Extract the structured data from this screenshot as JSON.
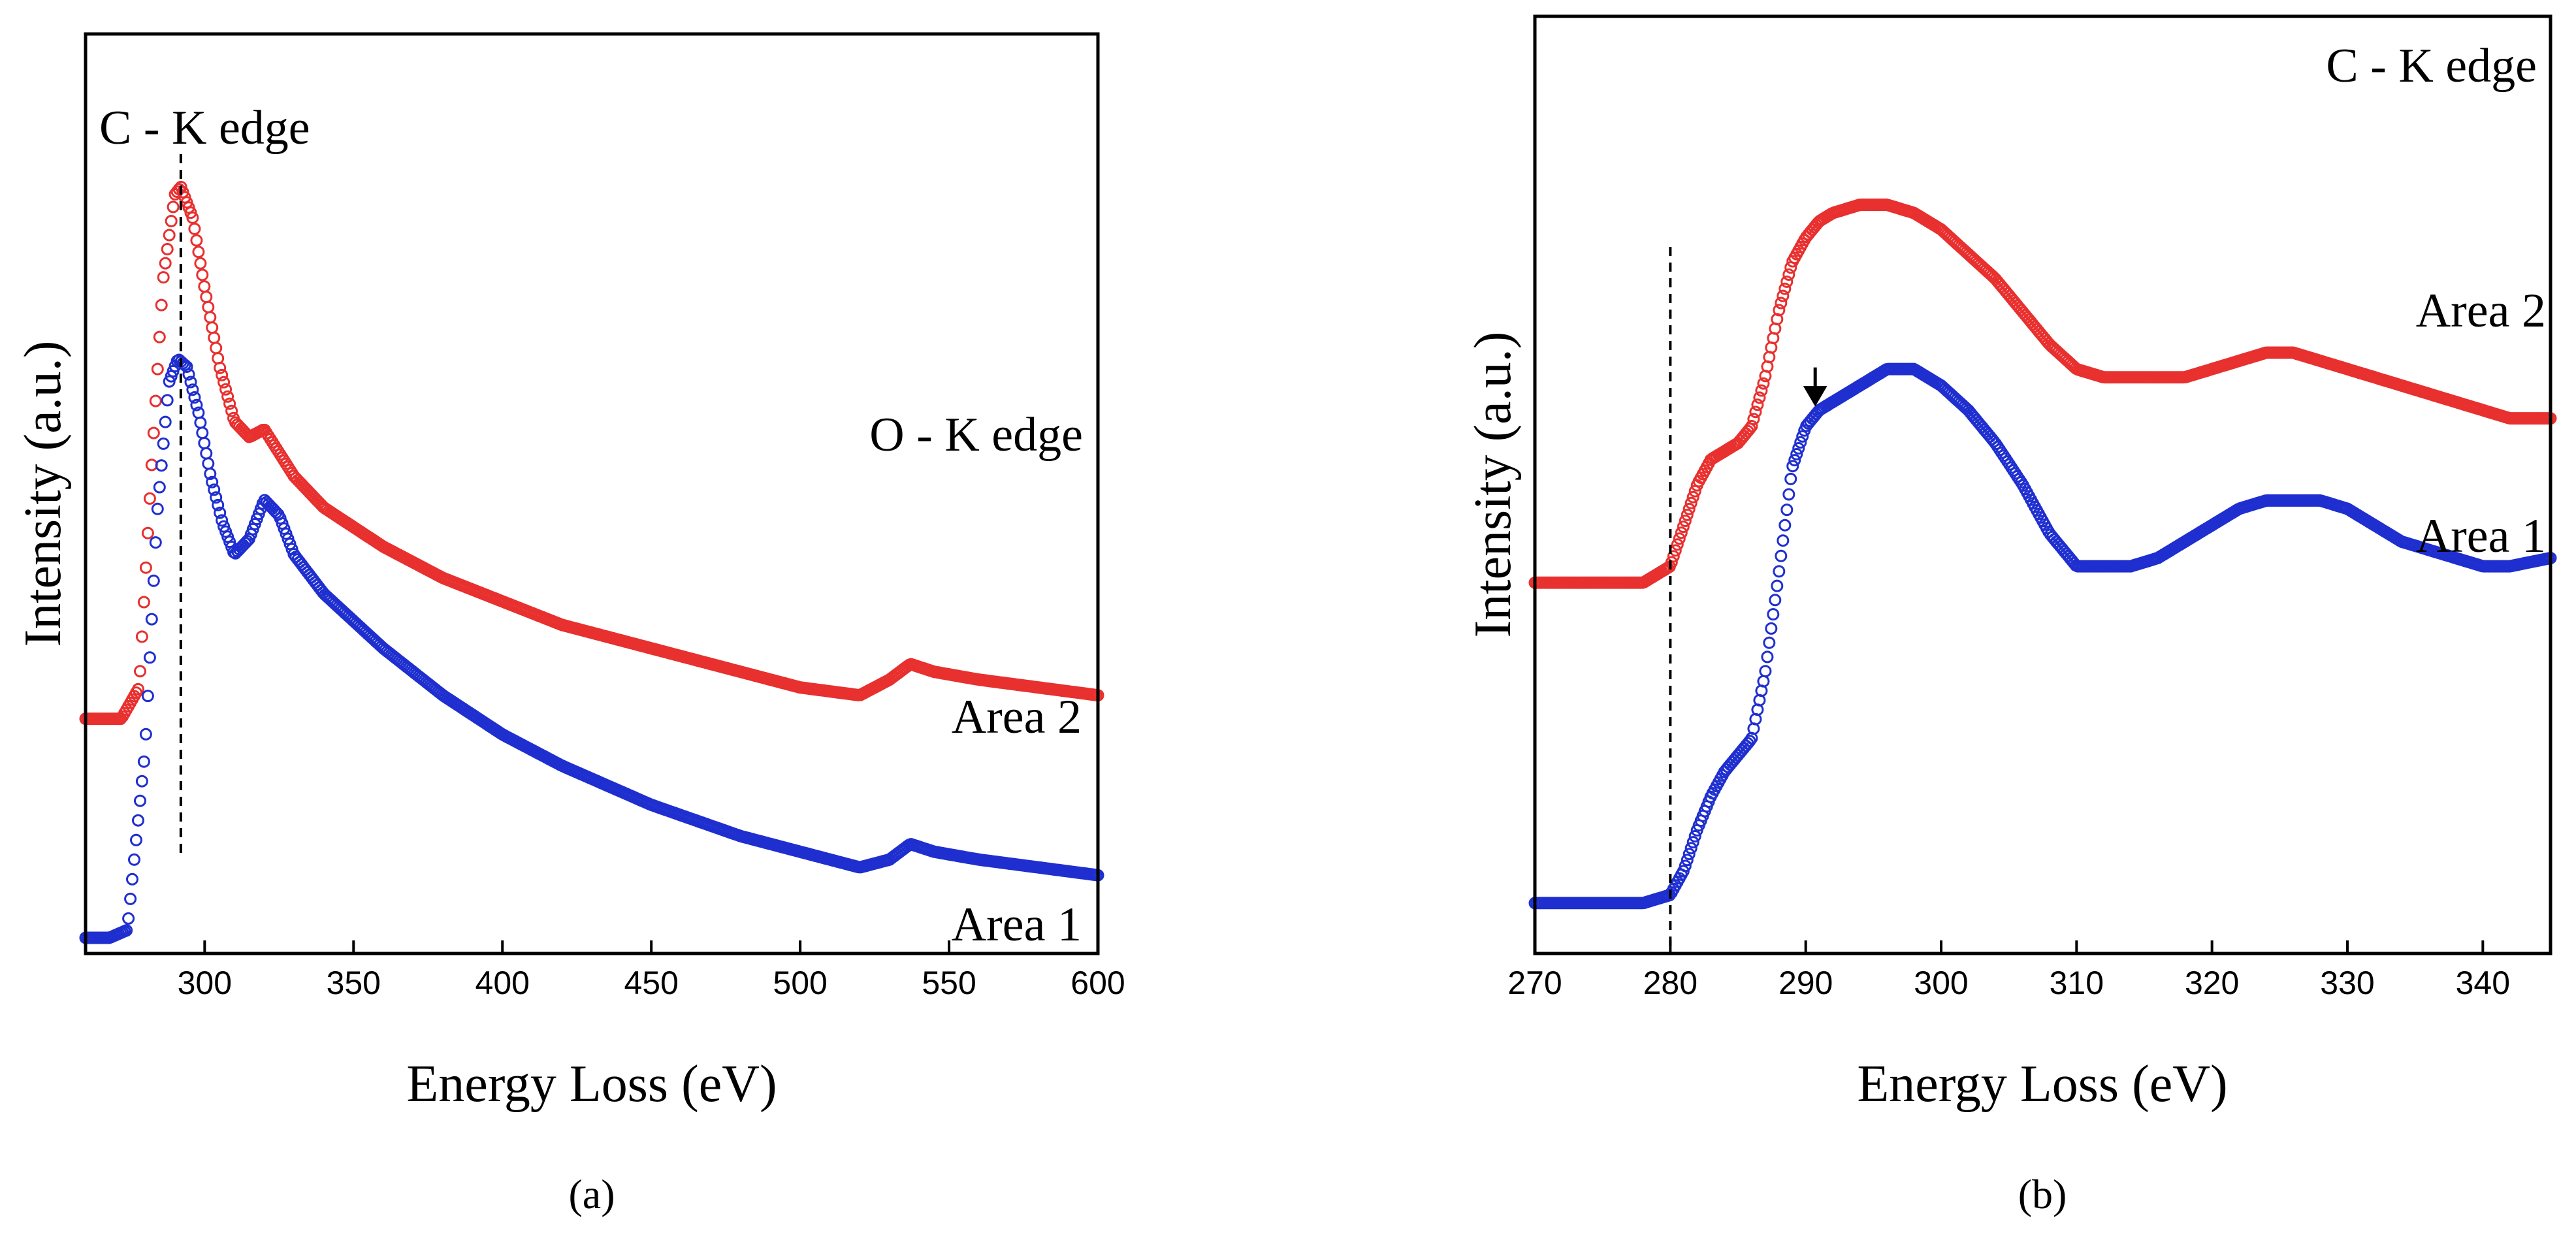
{
  "chart_data": [
    {
      "id": "a",
      "type": "scatter",
      "caption": "(a)",
      "xlabel": "Energy Loss (eV)",
      "ylabel": "Intensity (a.u.)",
      "xlim": [
        260,
        600
      ],
      "ylim": [
        0,
        1
      ],
      "xticks": [
        300,
        350,
        400,
        450,
        500,
        550,
        600
      ],
      "annotations": [
        "C - K edge",
        "O - K edge",
        "Area 2",
        "Area 1"
      ],
      "dashed_line_x": 292,
      "series": [
        {
          "name": "Area 2",
          "color": "#e8302f",
          "x": [
            260,
            272,
            278,
            282,
            286,
            290,
            292,
            296,
            300,
            305,
            310,
            315,
            320,
            325,
            330,
            340,
            360,
            380,
            400,
            420,
            450,
            480,
            500,
            520,
            530,
            537,
            545,
            560,
            580,
            600
          ],
          "y": [
            0.29,
            0.29,
            0.33,
            0.6,
            0.85,
            0.96,
            0.97,
            0.93,
            0.84,
            0.74,
            0.67,
            0.65,
            0.66,
            0.63,
            0.6,
            0.56,
            0.51,
            0.47,
            0.44,
            0.41,
            0.38,
            0.35,
            0.33,
            0.32,
            0.34,
            0.36,
            0.35,
            0.34,
            0.33,
            0.32
          ]
        },
        {
          "name": "Area 1",
          "color": "#1f2fcf",
          "x": [
            260,
            268,
            274,
            280,
            284,
            288,
            291,
            294,
            298,
            302,
            306,
            310,
            315,
            320,
            325,
            330,
            340,
            360,
            380,
            400,
            420,
            450,
            480,
            500,
            520,
            530,
            537,
            545,
            560,
            580,
            600
          ],
          "y": [
            0.01,
            0.01,
            0.02,
            0.25,
            0.55,
            0.72,
            0.75,
            0.74,
            0.68,
            0.6,
            0.54,
            0.5,
            0.52,
            0.57,
            0.55,
            0.5,
            0.45,
            0.38,
            0.32,
            0.27,
            0.23,
            0.18,
            0.14,
            0.12,
            0.1,
            0.11,
            0.13,
            0.12,
            0.11,
            0.1,
            0.09
          ]
        }
      ]
    },
    {
      "id": "b",
      "type": "scatter",
      "caption": "(b)",
      "xlabel": "Energy Loss (eV)",
      "ylabel": "Intensity (a.u.)",
      "xlim": [
        270,
        345
      ],
      "ylim": [
        0,
        1
      ],
      "xticks": [
        270,
        280,
        290,
        300,
        310,
        320,
        330,
        340
      ],
      "annotations": [
        "C - K edge",
        "Area 2",
        "Area 1"
      ],
      "dashed_line_x": 280,
      "arrow_x": 290.7,
      "series": [
        {
          "name": "Area 2",
          "color": "#e8302f",
          "x": [
            270,
            274,
            278,
            280,
            281,
            282,
            283,
            284,
            285,
            286,
            287,
            288,
            289,
            290,
            291,
            292,
            294,
            296,
            298,
            300,
            302,
            304,
            306,
            308,
            310,
            312,
            314,
            316,
            318,
            320,
            322,
            324,
            326,
            328,
            330,
            332,
            334,
            336,
            338,
            340,
            342,
            345
          ],
          "y": [
            0.41,
            0.41,
            0.41,
            0.43,
            0.48,
            0.53,
            0.56,
            0.57,
            0.58,
            0.6,
            0.66,
            0.74,
            0.8,
            0.83,
            0.85,
            0.86,
            0.87,
            0.87,
            0.86,
            0.84,
            0.81,
            0.78,
            0.74,
            0.7,
            0.67,
            0.66,
            0.66,
            0.66,
            0.66,
            0.67,
            0.68,
            0.69,
            0.69,
            0.68,
            0.67,
            0.66,
            0.65,
            0.64,
            0.63,
            0.62,
            0.61,
            0.61
          ]
        },
        {
          "name": "Area 1",
          "color": "#1f2fcf",
          "x": [
            270,
            274,
            278,
            280,
            281,
            282,
            283,
            284,
            285,
            286,
            287,
            288,
            289,
            290,
            291,
            292,
            294,
            296,
            298,
            300,
            302,
            304,
            306,
            308,
            310,
            312,
            314,
            316,
            318,
            320,
            322,
            324,
            326,
            328,
            330,
            332,
            334,
            336,
            338,
            340,
            342,
            345
          ],
          "y": [
            0.02,
            0.02,
            0.02,
            0.03,
            0.06,
            0.11,
            0.15,
            0.18,
            0.2,
            0.22,
            0.3,
            0.42,
            0.55,
            0.6,
            0.62,
            0.63,
            0.65,
            0.67,
            0.67,
            0.65,
            0.62,
            0.58,
            0.53,
            0.47,
            0.43,
            0.43,
            0.43,
            0.44,
            0.46,
            0.48,
            0.5,
            0.51,
            0.51,
            0.51,
            0.5,
            0.48,
            0.46,
            0.45,
            0.44,
            0.43,
            0.43,
            0.44
          ]
        }
      ]
    }
  ]
}
